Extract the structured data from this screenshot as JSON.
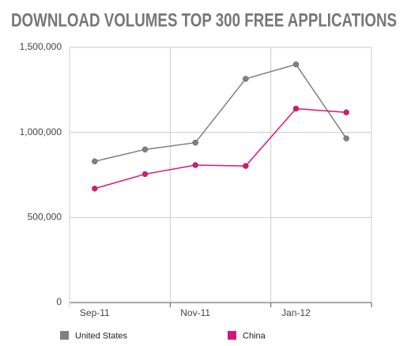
{
  "chart_data": {
    "type": "line",
    "title": "DOWNLOAD VOLUMES TOP 300 FREE APPLICATIONS",
    "categories": [
      "Sep-11",
      null,
      "Nov-11",
      null,
      "Jan-12",
      null
    ],
    "series": [
      {
        "name": "United States",
        "color": "#808080",
        "values": [
          830000,
          900000,
          940000,
          1315000,
          1400000,
          965000
        ]
      },
      {
        "name": "China",
        "color": "#dd1477",
        "values": [
          670000,
          755000,
          808000,
          803000,
          1140000,
          1118000
        ]
      }
    ],
    "ylim": [
      0,
      1500000
    ],
    "yticks": [
      0,
      {
        "value": 500000,
        "label": "500,000"
      },
      {
        "value": 1000000,
        "label": "1,000,000"
      },
      {
        "value": 1500000,
        "label": "1,500,000"
      }
    ],
    "grid": true
  }
}
